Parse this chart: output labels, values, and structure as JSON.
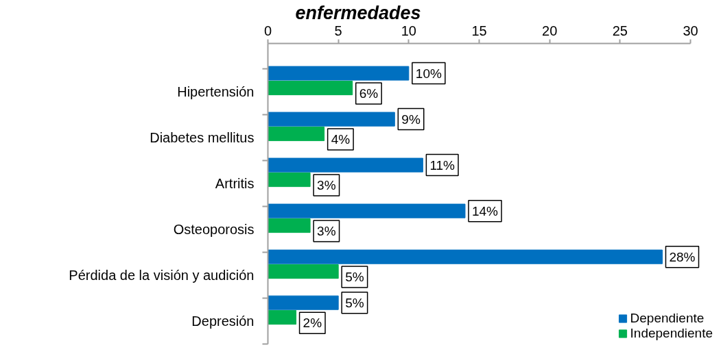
{
  "chart_data": {
    "type": "bar",
    "orientation": "horizontal",
    "title": "enfermedades",
    "categories": [
      "Hipertensión",
      "Diabetes mellitus",
      "Artritis",
      "Osteoporosis",
      "Pérdida de la visión y audición",
      "Depresión"
    ],
    "series": [
      {
        "name": "Dependiente",
        "color": "#0070c0",
        "values": [
          10,
          9,
          11,
          14,
          28,
          5
        ],
        "value_labels": [
          "10%",
          "9%",
          "11%",
          "14%",
          "28%",
          "5%"
        ]
      },
      {
        "name": "Independiente",
        "color": "#00b050",
        "values": [
          6,
          4,
          3,
          3,
          5,
          2
        ],
        "value_labels": [
          "6%",
          "4%",
          "3%",
          "3%",
          "5%",
          "2%"
        ]
      }
    ],
    "xlim": [
      0,
      30
    ],
    "xticks": [
      0,
      5,
      10,
      15,
      20,
      25,
      30
    ],
    "legend": "bottom right"
  }
}
